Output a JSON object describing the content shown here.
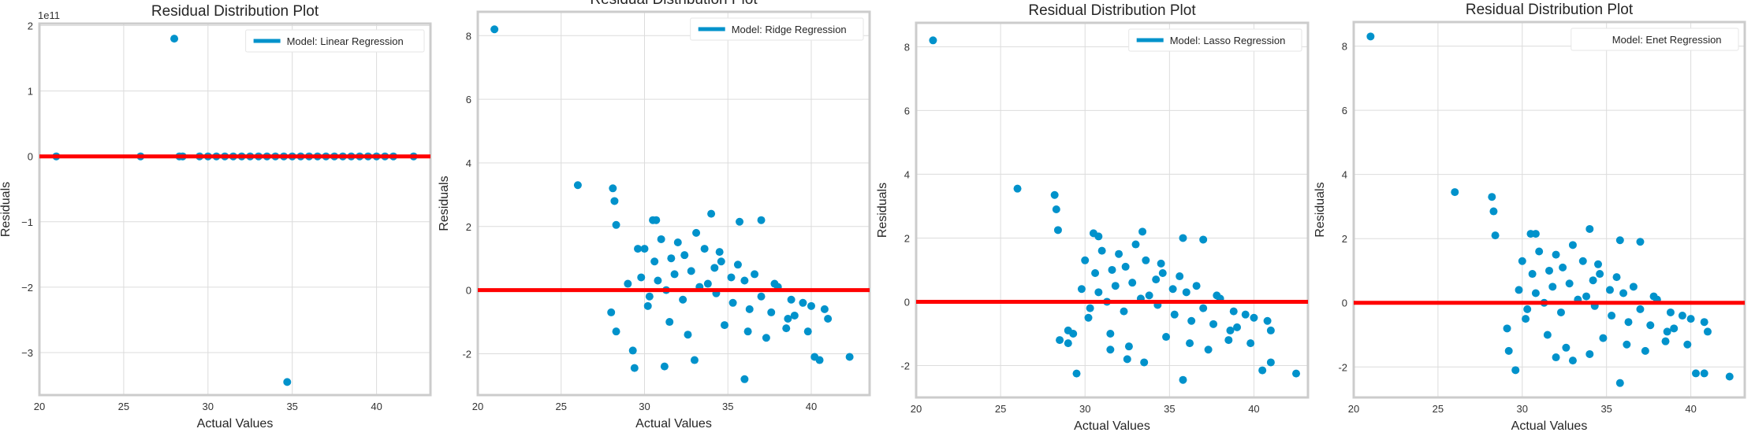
{
  "colors": {
    "points": "#0092CB",
    "zero_line": "#FF0000",
    "grid": "#DCDCDC",
    "frame": "#CCCCCC"
  },
  "chart_data": [
    {
      "type": "scatter",
      "title": "Residual Distribution Plot",
      "xlabel": "Actual Values",
      "ylabel": "Residuals",
      "legend": {
        "label": "Model: Linear Regression",
        "position": "top-right",
        "marker": "line"
      },
      "xlim": [
        20.0,
        43.2
      ],
      "ylim": [
        -3.65,
        2.03
      ],
      "y_exponent": "1e11",
      "xticks": [
        20,
        25,
        30,
        35,
        40
      ],
      "yticks": [
        -3,
        -2,
        -1,
        0,
        1,
        2
      ],
      "ytick_labels": [
        "−3",
        "−2",
        "−1",
        "0",
        "1",
        "2"
      ],
      "grid": true,
      "zero_line": 0,
      "points": [
        [
          21.0,
          0
        ],
        [
          26.0,
          0
        ],
        [
          28.3,
          0
        ],
        [
          28.5,
          0
        ],
        [
          29.5,
          0
        ],
        [
          30.0,
          0
        ],
        [
          30.5,
          0
        ],
        [
          31.0,
          0
        ],
        [
          31.5,
          0
        ],
        [
          32.0,
          0
        ],
        [
          32.5,
          0
        ],
        [
          33.0,
          0
        ],
        [
          33.5,
          0
        ],
        [
          34.0,
          0
        ],
        [
          34.5,
          0
        ],
        [
          35.0,
          0
        ],
        [
          35.5,
          0
        ],
        [
          36.0,
          0
        ],
        [
          36.5,
          0
        ],
        [
          37.0,
          0
        ],
        [
          37.5,
          0
        ],
        [
          38.0,
          0
        ],
        [
          38.5,
          0
        ],
        [
          39.0,
          0
        ],
        [
          39.5,
          0
        ],
        [
          40.0,
          0
        ],
        [
          40.5,
          0
        ],
        [
          41.0,
          0
        ],
        [
          42.2,
          0
        ],
        [
          28.0,
          1.8
        ],
        [
          34.7,
          -3.45
        ]
      ]
    },
    {
      "type": "scatter",
      "title": "Residual Distribution Plot",
      "xlabel": "Actual Values",
      "ylabel": "Residuals",
      "legend": {
        "label": "Model: Ridge Regression",
        "position": "top-right",
        "marker": "line"
      },
      "xlim": [
        20.0,
        43.5
      ],
      "ylim": [
        -3.3,
        8.75
      ],
      "xticks": [
        20,
        25,
        30,
        35,
        40
      ],
      "yticks": [
        -2,
        0,
        2,
        4,
        6,
        8
      ],
      "grid": true,
      "zero_line": 0,
      "points": [
        [
          21.0,
          8.2
        ],
        [
          26.0,
          3.3
        ],
        [
          28.1,
          3.2
        ],
        [
          28.2,
          2.8
        ],
        [
          28.3,
          2.05
        ],
        [
          29.3,
          -1.9
        ],
        [
          29.4,
          -2.45
        ],
        [
          30.5,
          2.2
        ],
        [
          30.7,
          2.2
        ],
        [
          34.0,
          2.4
        ],
        [
          35.7,
          2.15
        ],
        [
          37.0,
          2.2
        ],
        [
          36.0,
          -2.8
        ],
        [
          40.2,
          -2.1
        ],
        [
          40.5,
          -2.2
        ],
        [
          42.3,
          -2.1
        ],
        [
          33.0,
          -2.2
        ],
        [
          31.2,
          -2.4
        ],
        [
          30.0,
          1.3
        ],
        [
          31.0,
          1.6
        ],
        [
          32.0,
          1.5
        ],
        [
          33.1,
          1.8
        ],
        [
          34.5,
          1.2
        ],
        [
          30.2,
          -0.5
        ],
        [
          31.5,
          -1.0
        ],
        [
          32.6,
          -1.4
        ],
        [
          34.8,
          -1.1
        ],
        [
          36.2,
          -1.3
        ],
        [
          37.3,
          -1.5
        ],
        [
          38.5,
          -1.2
        ],
        [
          39.0,
          -0.8
        ],
        [
          40.0,
          -0.5
        ],
        [
          41.0,
          -0.9
        ],
        [
          29.8,
          0.4
        ],
        [
          30.8,
          0.3
        ],
        [
          31.8,
          0.5
        ],
        [
          32.8,
          0.6
        ],
        [
          33.8,
          0.2
        ],
        [
          34.2,
          0.7
        ],
        [
          35.2,
          0.4
        ],
        [
          36.0,
          0.3
        ],
        [
          37.0,
          -0.2
        ],
        [
          38.0,
          0.1
        ],
        [
          39.5,
          -0.4
        ],
        [
          40.8,
          -0.6
        ],
        [
          30.3,
          -0.2
        ],
        [
          31.3,
          0.0
        ],
        [
          32.3,
          -0.3
        ],
        [
          33.3,
          0.1
        ],
        [
          34.3,
          -0.1
        ],
        [
          35.3,
          -0.4
        ],
        [
          36.3,
          -0.6
        ],
        [
          37.6,
          -0.7
        ],
        [
          38.6,
          -0.9
        ],
        [
          39.8,
          -1.3
        ],
        [
          30.6,
          0.9
        ],
        [
          31.6,
          1.0
        ],
        [
          32.4,
          1.1
        ],
        [
          33.6,
          1.3
        ],
        [
          34.6,
          0.9
        ],
        [
          35.6,
          0.8
        ],
        [
          36.6,
          0.5
        ],
        [
          37.8,
          0.2
        ],
        [
          38.8,
          -0.3
        ],
        [
          28.0,
          -0.7
        ],
        [
          28.3,
          -1.3
        ],
        [
          29.0,
          0.2
        ],
        [
          29.6,
          1.3
        ]
      ]
    },
    {
      "type": "scatter",
      "title": "Residual Distribution Plot",
      "xlabel": "Actual Values",
      "ylabel": "Residuals",
      "legend": {
        "label": "Model: Lasso Regression",
        "position": "top-right",
        "marker": "line"
      },
      "xlim": [
        20.0,
        43.2
      ],
      "ylim": [
        -3.0,
        8.75
      ],
      "xticks": [
        20,
        25,
        30,
        35,
        40
      ],
      "yticks": [
        -2,
        0,
        2,
        4,
        6,
        8
      ],
      "grid": true,
      "zero_line": 0,
      "points": [
        [
          21.0,
          8.2
        ],
        [
          26.0,
          3.55
        ],
        [
          28.2,
          3.35
        ],
        [
          28.3,
          2.9
        ],
        [
          28.4,
          2.25
        ],
        [
          29.3,
          -1.0
        ],
        [
          29.5,
          -2.25
        ],
        [
          30.5,
          2.15
        ],
        [
          30.8,
          2.05
        ],
        [
          33.4,
          2.2
        ],
        [
          35.8,
          2.0
        ],
        [
          37.0,
          1.95
        ],
        [
          35.8,
          -2.45
        ],
        [
          40.5,
          -2.15
        ],
        [
          41.0,
          -1.9
        ],
        [
          42.5,
          -2.25
        ],
        [
          31.5,
          -1.5
        ],
        [
          29.0,
          -0.9
        ],
        [
          30.0,
          1.3
        ],
        [
          31.0,
          1.6
        ],
        [
          32.0,
          1.5
        ],
        [
          33.0,
          1.8
        ],
        [
          34.5,
          1.2
        ],
        [
          30.2,
          -0.5
        ],
        [
          31.5,
          -1.0
        ],
        [
          32.6,
          -1.4
        ],
        [
          34.8,
          -1.1
        ],
        [
          36.2,
          -1.3
        ],
        [
          37.3,
          -1.5
        ],
        [
          38.5,
          -1.2
        ],
        [
          39.0,
          -0.8
        ],
        [
          40.0,
          -0.5
        ],
        [
          41.0,
          -0.9
        ],
        [
          29.8,
          0.4
        ],
        [
          30.8,
          0.3
        ],
        [
          31.8,
          0.5
        ],
        [
          32.8,
          0.6
        ],
        [
          33.8,
          0.2
        ],
        [
          34.2,
          0.7
        ],
        [
          35.2,
          0.4
        ],
        [
          36.0,
          0.3
        ],
        [
          37.0,
          -0.2
        ],
        [
          38.0,
          0.1
        ],
        [
          39.5,
          -0.4
        ],
        [
          40.8,
          -0.6
        ],
        [
          30.3,
          -0.2
        ],
        [
          31.3,
          0.0
        ],
        [
          32.3,
          -0.3
        ],
        [
          33.3,
          0.1
        ],
        [
          34.3,
          -0.1
        ],
        [
          35.3,
          -0.4
        ],
        [
          36.3,
          -0.6
        ],
        [
          37.6,
          -0.7
        ],
        [
          38.6,
          -0.9
        ],
        [
          39.8,
          -1.3
        ],
        [
          30.6,
          0.9
        ],
        [
          31.6,
          1.0
        ],
        [
          32.4,
          1.1
        ],
        [
          33.6,
          1.3
        ],
        [
          34.6,
          0.9
        ],
        [
          35.6,
          0.8
        ],
        [
          36.6,
          0.5
        ],
        [
          37.8,
          0.2
        ],
        [
          38.8,
          -0.3
        ],
        [
          29.0,
          -1.3
        ],
        [
          28.5,
          -1.2
        ],
        [
          32.5,
          -1.8
        ],
        [
          33.5,
          -1.9
        ]
      ]
    },
    {
      "type": "scatter",
      "title": "Residual Distribution Plot",
      "xlabel": "Actual Values",
      "ylabel": "Residuals",
      "legend": {
        "label": "Model: Enet Regression",
        "position": "top-right",
        "marker": "none"
      },
      "xlim": [
        20.0,
        43.2
      ],
      "ylim": [
        -2.95,
        8.75
      ],
      "xticks": [
        20,
        25,
        30,
        35,
        40
      ],
      "yticks": [
        -2,
        0,
        2,
        4,
        6,
        8
      ],
      "grid": true,
      "zero_line": 0,
      "points": [
        [
          21.0,
          8.3
        ],
        [
          26.0,
          3.45
        ],
        [
          28.2,
          3.3
        ],
        [
          28.3,
          2.85
        ],
        [
          28.4,
          2.1
        ],
        [
          29.1,
          -0.8
        ],
        [
          29.2,
          -1.5
        ],
        [
          29.6,
          -2.1
        ],
        [
          30.5,
          2.15
        ],
        [
          30.8,
          2.15
        ],
        [
          34.0,
          2.3
        ],
        [
          35.8,
          1.95
        ],
        [
          37.0,
          1.9
        ],
        [
          35.8,
          -2.5
        ],
        [
          40.3,
          -2.2
        ],
        [
          40.8,
          -2.2
        ],
        [
          42.3,
          -2.3
        ],
        [
          34.0,
          -1.6
        ],
        [
          30.0,
          1.3
        ],
        [
          31.0,
          1.6
        ],
        [
          32.0,
          1.5
        ],
        [
          33.0,
          1.8
        ],
        [
          34.5,
          1.2
        ],
        [
          30.2,
          -0.5
        ],
        [
          31.5,
          -1.0
        ],
        [
          32.6,
          -1.4
        ],
        [
          34.8,
          -1.1
        ],
        [
          36.2,
          -1.3
        ],
        [
          37.3,
          -1.5
        ],
        [
          38.5,
          -1.2
        ],
        [
          39.0,
          -0.8
        ],
        [
          40.0,
          -0.5
        ],
        [
          41.0,
          -0.9
        ],
        [
          29.8,
          0.4
        ],
        [
          30.8,
          0.3
        ],
        [
          31.8,
          0.5
        ],
        [
          32.8,
          0.6
        ],
        [
          33.8,
          0.2
        ],
        [
          34.2,
          0.7
        ],
        [
          35.2,
          0.4
        ],
        [
          36.0,
          0.3
        ],
        [
          37.0,
          -0.2
        ],
        [
          38.0,
          0.1
        ],
        [
          39.5,
          -0.4
        ],
        [
          40.8,
          -0.6
        ],
        [
          30.3,
          -0.2
        ],
        [
          31.3,
          0.0
        ],
        [
          32.3,
          -0.3
        ],
        [
          33.3,
          0.1
        ],
        [
          34.3,
          -0.1
        ],
        [
          35.3,
          -0.4
        ],
        [
          36.3,
          -0.6
        ],
        [
          37.6,
          -0.7
        ],
        [
          38.6,
          -0.9
        ],
        [
          39.8,
          -1.3
        ],
        [
          30.6,
          0.9
        ],
        [
          31.6,
          1.0
        ],
        [
          32.4,
          1.1
        ],
        [
          33.6,
          1.3
        ],
        [
          34.6,
          0.9
        ],
        [
          35.6,
          0.8
        ],
        [
          36.6,
          0.5
        ],
        [
          37.8,
          0.2
        ],
        [
          38.8,
          -0.3
        ],
        [
          33.0,
          -1.8
        ],
        [
          32.0,
          -1.7
        ]
      ]
    }
  ]
}
